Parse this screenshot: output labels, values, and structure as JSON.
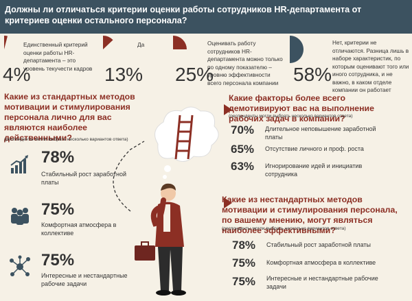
{
  "header": {
    "title": "Должны ли отличаться критерии оценки работы сотрудников HR-департамента от критериев оценки остального персонала?"
  },
  "top_stats": [
    {
      "pct": "4%",
      "text": "Единственный критерий оценки работы HR-департамента – это уровень текучести кадров",
      "value": 0.04,
      "color": "#8c2f24"
    },
    {
      "pct": "13%",
      "text": "Да",
      "value": 0.13,
      "color": "#8c2f24"
    },
    {
      "pct": "25%",
      "text": "Оценивать работу сотрудников HR-департамента можно только по одному показателю – уровню эффективности всего персонала компании",
      "value": 0.25,
      "color": "#8c2f24"
    },
    {
      "pct": "58%",
      "text": "Нет, критерии не отличаются. Разница лишь в наборе характеристик, по которым оценивают того или иного сотрудника, и не важно, в каком отделе компании он работает",
      "value": 0.58,
      "color": "#3c5260"
    }
  ],
  "left_section": {
    "question": "Какие из стандартных методов мотивации и стимулирования персонала лично для вас являются наиболее действенными?",
    "note": "(респонденты могли выбрать несколько вариантов ответа)",
    "items": [
      {
        "pct": "78%",
        "label": "Стабильный рост заработной платы",
        "icon": "growth-chart-icon"
      },
      {
        "pct": "75%",
        "label": "Комфортная атмосфера в коллективе",
        "icon": "team-icon"
      },
      {
        "pct": "75%",
        "label": "Интересные и нестандартные рабочие задачи",
        "icon": "network-icon"
      }
    ]
  },
  "right_top": {
    "question": "Какие факторы более всего демотивируют вас на выполнение рабочих задач в компании?",
    "note": "(респонденты могли выбрать несколько вариантов ответа)",
    "items": [
      {
        "pct": "70%",
        "label": "Длительное неповышение заработной платы"
      },
      {
        "pct": "65%",
        "label": "Отсутствие личного и проф. роста"
      },
      {
        "pct": "63%",
        "label": "Игнорирование идей и инициатив сотрудника"
      }
    ]
  },
  "right_bottom": {
    "question": "Какие из нестандартных методов мотивации и стимулирования персонала, по вашему мнению, могут являться наиболее эффективными?",
    "note": "(респонденты могли выбрать несколько вариантов ответа)",
    "items": [
      {
        "pct": "78%",
        "label": "Стабильный рост заработной платы"
      },
      {
        "pct": "75%",
        "label": "Комфортная атмосфера в коллективе"
      },
      {
        "pct": "75%",
        "label": "Интересные и нестандартные рабочие задачи"
      }
    ]
  },
  "colors": {
    "accent": "#8c2f24",
    "dark": "#3c5260",
    "bg": "#f6f1e6"
  }
}
